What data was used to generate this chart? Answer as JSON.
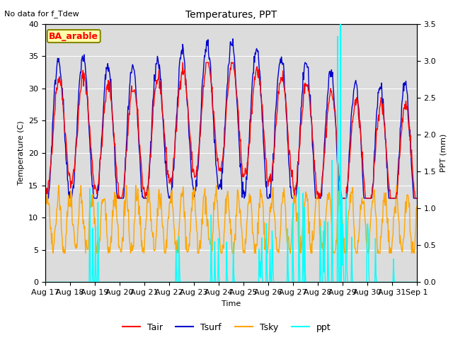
{
  "title": "Temperatures, PPT",
  "top_note": "No data for f_Tdew",
  "box_label": "BA_arable",
  "xlabel": "Time",
  "ylabel_left": "Temperature (C)",
  "ylabel_right": "PPT (mm)",
  "ylim_left": [
    0,
    40
  ],
  "ylim_right": [
    0,
    3.5
  ],
  "yticks_left": [
    0,
    5,
    10,
    15,
    20,
    25,
    30,
    35,
    40
  ],
  "yticks_right": [
    0.0,
    0.5,
    1.0,
    1.5,
    2.0,
    2.5,
    3.0,
    3.5
  ],
  "xticklabels": [
    "Aug 17",
    "Aug 18",
    "Aug 19",
    "Aug 20",
    "Aug 21",
    "Aug 22",
    "Aug 23",
    "Aug 24",
    "Aug 25",
    "Aug 26",
    "Aug 27",
    "Aug 28",
    "Aug 29",
    "Aug 30",
    "Aug 31",
    "Sep 1"
  ],
  "colors": {
    "Tair": "#ff0000",
    "Tsurf": "#0000cc",
    "Tsky": "#ffa500",
    "ppt": "#00ffff",
    "background": "#dcdcdc",
    "box_bg": "#ffffaa",
    "box_border": "#888800"
  },
  "legend": [
    "Tair",
    "Tsurf",
    "Tsky",
    "ppt"
  ],
  "n_days": 15,
  "pts_per_day": 48,
  "seed": 42
}
